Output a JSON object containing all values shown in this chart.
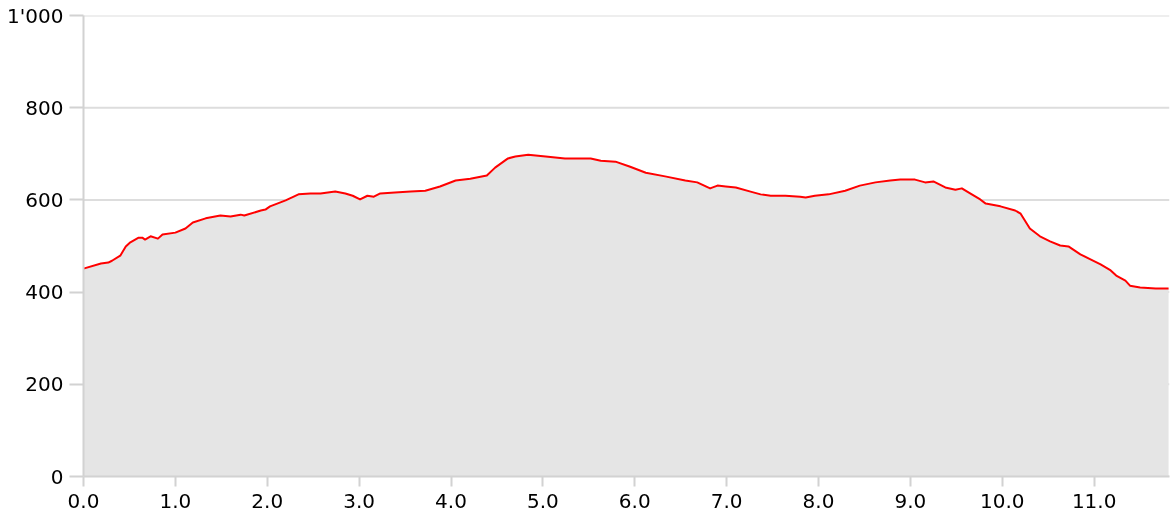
{
  "chart_data": {
    "type": "area",
    "x": [
      0,
      0.19,
      0.27,
      0.31,
      0.4,
      0.46,
      0.51,
      0.6,
      0.64,
      0.67,
      0.73,
      0.81,
      0.86,
      1.0,
      1.11,
      1.19,
      1.33,
      1.49,
      1.6,
      1.71,
      1.75,
      1.93,
      1.98,
      2.03,
      2.2,
      2.34,
      2.47,
      2.58,
      2.74,
      2.85,
      2.93,
      3.01,
      3.09,
      3.16,
      3.23,
      3.39,
      3.56,
      3.72,
      3.88,
      4.05,
      4.21,
      4.39,
      4.48,
      4.62,
      4.7,
      4.84,
      5.03,
      5.24,
      5.52,
      5.63,
      5.79,
      5.95,
      6.12,
      6.33,
      6.55,
      6.68,
      6.82,
      6.9,
      6.99,
      7.1,
      7.26,
      7.37,
      7.48,
      7.64,
      7.8,
      7.86,
      7.96,
      8.11,
      8.29,
      8.45,
      8.62,
      8.78,
      8.89,
      9.05,
      9.16,
      9.25,
      9.38,
      9.49,
      9.56,
      9.65,
      9.76,
      9.82,
      9.98,
      10.14,
      10.2,
      10.3,
      10.41,
      10.52,
      10.63,
      10.72,
      10.85,
      10.96,
      11.07,
      11.18,
      11.24,
      11.34,
      11.39,
      11.5,
      11.67,
      11.81
    ],
    "series": [
      {
        "color": "#ff0000",
        "values": [
          451,
          462,
          464,
          468,
          479,
          499,
          508,
          518,
          518,
          514,
          521,
          516,
          525,
          529,
          538,
          551,
          560,
          566,
          564,
          568,
          566,
          577,
          579,
          586,
          599,
          612,
          614,
          614,
          618,
          614,
          609,
          601,
          609,
          607,
          614,
          616,
          618,
          620,
          629,
          642,
          646,
          653,
          670,
          690,
          694,
          698,
          694,
          690,
          690,
          685,
          683,
          672,
          659,
          651,
          642,
          638,
          625,
          631,
          629,
          627,
          618,
          612,
          609,
          609,
          607,
          605,
          609,
          612,
          620,
          631,
          638,
          642,
          644,
          644,
          638,
          640,
          627,
          622,
          625,
          614,
          601,
          592,
          586,
          577,
          570,
          538,
          521,
          510,
          501,
          499,
          482,
          471,
          460,
          447,
          436,
          425,
          414,
          410,
          408,
          408
        ]
      }
    ],
    "xlim": [
      0,
      11.82
    ],
    "ylim": [
      0,
      1000
    ],
    "xticks": [
      {
        "value": 0,
        "label": "0.0"
      },
      {
        "value": 1,
        "label": "1.0"
      },
      {
        "value": 2,
        "label": "2.0"
      },
      {
        "value": 3,
        "label": "3.0"
      },
      {
        "value": 4,
        "label": "4.0"
      },
      {
        "value": 5,
        "label": "5.0"
      },
      {
        "value": 6,
        "label": "6.0"
      },
      {
        "value": 7,
        "label": "7.0"
      },
      {
        "value": 8,
        "label": "8.0"
      },
      {
        "value": 9,
        "label": "9.0"
      },
      {
        "value": 10,
        "label": "10.0"
      },
      {
        "value": 11,
        "label": "11.0"
      }
    ],
    "yticks": [
      0,
      200,
      400,
      600,
      800,
      {
        "value": 1000,
        "label": "1'000"
      }
    ],
    "grid": "y",
    "marker": "none",
    "line_style": "solid"
  }
}
